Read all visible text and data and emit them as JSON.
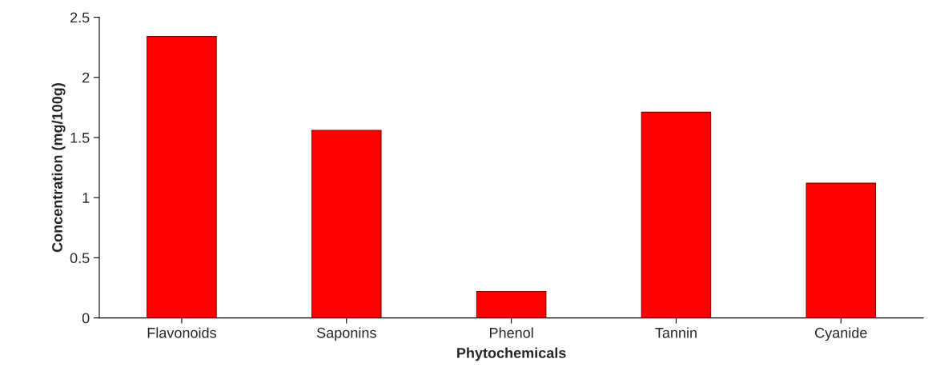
{
  "chart_data": {
    "type": "bar",
    "xlabel": "Phytochemicals",
    "ylabel": "Concentration (mg/100g)",
    "categories": [
      "Flavonoids",
      "Saponins",
      "Phenol",
      "Tannin",
      "Cyanide"
    ],
    "values": [
      2.34,
      1.56,
      0.22,
      1.71,
      1.12
    ],
    "color": "#ff0000",
    "ylim": [
      0,
      2.5
    ],
    "yticks": [
      0,
      0.5,
      1,
      1.5,
      2,
      2.5
    ],
    "grid": false
  }
}
